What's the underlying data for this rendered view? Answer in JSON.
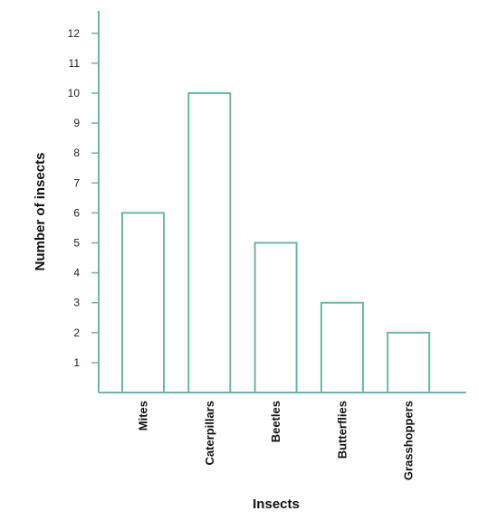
{
  "chart_data": {
    "type": "bar",
    "categories": [
      "Mites",
      "Caterpillars",
      "Beetles",
      "Butterflies",
      "Grasshoppers"
    ],
    "values": [
      6,
      10,
      5,
      3,
      2
    ],
    "xlabel": "Insects",
    "ylabel": "Number of insects",
    "ylim": [
      0,
      12
    ],
    "yticks": [
      1,
      2,
      3,
      4,
      5,
      6,
      7,
      8,
      9,
      10,
      11,
      12
    ],
    "grid": false,
    "colors": {
      "bar_stroke": "#6fb5a8",
      "axis": "#6fb5a8",
      "bar_fill": "#ffffff"
    }
  }
}
